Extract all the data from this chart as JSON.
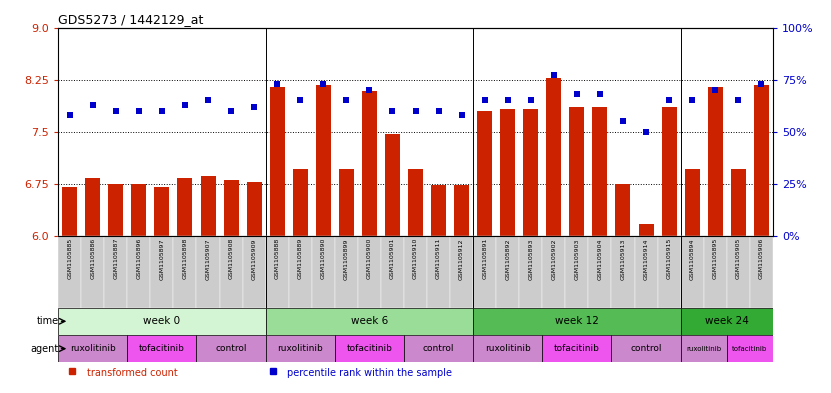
{
  "title": "GDS5273 / 1442129_at",
  "samples": [
    "GSM1105885",
    "GSM1105886",
    "GSM1105887",
    "GSM1105896",
    "GSM1105897",
    "GSM1105898",
    "GSM1105907",
    "GSM1105908",
    "GSM1105909",
    "GSM1105888",
    "GSM1105889",
    "GSM1105890",
    "GSM1105899",
    "GSM1105900",
    "GSM1105901",
    "GSM1105910",
    "GSM1105911",
    "GSM1105912",
    "GSM1105891",
    "GSM1105892",
    "GSM1105893",
    "GSM1105902",
    "GSM1105903",
    "GSM1105904",
    "GSM1105913",
    "GSM1105914",
    "GSM1105915",
    "GSM1105894",
    "GSM1105895",
    "GSM1105905",
    "GSM1105906"
  ],
  "transformed_count": [
    6.71,
    6.83,
    6.75,
    6.75,
    6.7,
    6.83,
    6.87,
    6.8,
    6.78,
    8.15,
    6.97,
    8.17,
    6.97,
    8.09,
    7.47,
    6.97,
    6.74,
    6.74,
    7.8,
    7.83,
    7.83,
    8.27,
    7.85,
    7.85,
    6.75,
    6.17,
    7.85,
    6.97,
    8.15,
    6.97,
    8.17
  ],
  "percentile_rank": [
    58,
    63,
    60,
    60,
    60,
    63,
    65,
    60,
    62,
    73,
    65,
    73,
    65,
    70,
    60,
    60,
    60,
    58,
    65,
    65,
    65,
    77,
    68,
    68,
    55,
    50,
    65,
    65,
    70,
    65,
    73
  ],
  "ylim_left": [
    6.0,
    9.0
  ],
  "ylim_right": [
    0,
    100
  ],
  "yticks_left": [
    6.0,
    6.75,
    7.5,
    8.25,
    9.0
  ],
  "yticks_right": [
    0,
    25,
    50,
    75,
    100
  ],
  "hlines": [
    6.75,
    7.5,
    8.25
  ],
  "bar_color": "#cc2200",
  "dot_color": "#0000cc",
  "bar_bottom": 6.0,
  "groups": [
    {
      "label": "week 0",
      "color": "#d4f5d4",
      "start": 0,
      "end": 9
    },
    {
      "label": "week 6",
      "color": "#99dd99",
      "start": 9,
      "end": 18
    },
    {
      "label": "week 12",
      "color": "#55bb55",
      "start": 18,
      "end": 27
    },
    {
      "label": "week 24",
      "color": "#33aa33",
      "start": 27,
      "end": 31
    }
  ],
  "agents": [
    {
      "label": "ruxolitinib",
      "color": "#cc88cc",
      "start": 0,
      "end": 3
    },
    {
      "label": "tofacitinib",
      "color": "#ee55ee",
      "start": 3,
      "end": 6
    },
    {
      "label": "control",
      "color": "#cc88cc",
      "start": 6,
      "end": 9
    },
    {
      "label": "ruxolitinib",
      "color": "#cc88cc",
      "start": 9,
      "end": 12
    },
    {
      "label": "tofacitinib",
      "color": "#ee55ee",
      "start": 12,
      "end": 15
    },
    {
      "label": "control",
      "color": "#cc88cc",
      "start": 15,
      "end": 18
    },
    {
      "label": "ruxolitinib",
      "color": "#cc88cc",
      "start": 18,
      "end": 21
    },
    {
      "label": "tofacitinib",
      "color": "#ee55ee",
      "start": 21,
      "end": 24
    },
    {
      "label": "control",
      "color": "#cc88cc",
      "start": 24,
      "end": 27
    },
    {
      "label": "ruxolitinib",
      "color": "#cc88cc",
      "start": 27,
      "end": 29
    },
    {
      "label": "tofacitinib",
      "color": "#ee55ee",
      "start": 29,
      "end": 31
    }
  ],
  "legend_items": [
    {
      "label": "transformed count",
      "color": "#cc2200"
    },
    {
      "label": "percentile rank within the sample",
      "color": "#0000cc"
    }
  ],
  "tick_label_color": "#333333",
  "xlabel_bg": "#cccccc"
}
